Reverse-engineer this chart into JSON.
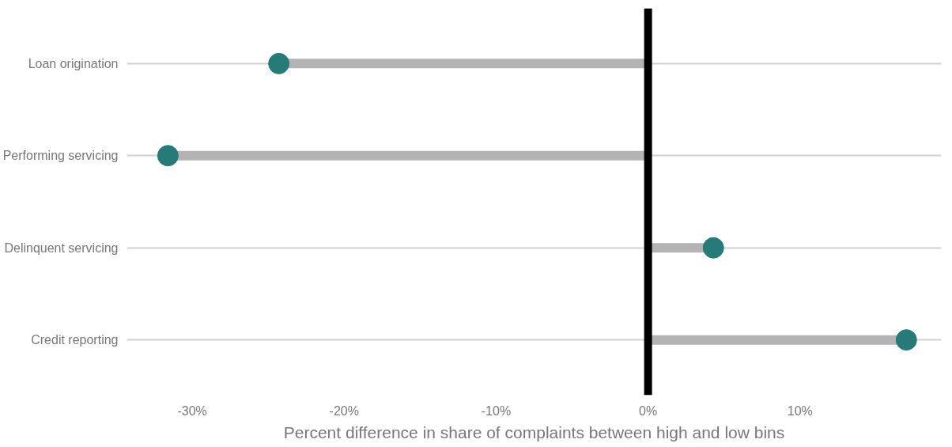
{
  "chart_data": {
    "type": "lollipop",
    "orientation": "horizontal",
    "xlabel": "Percent difference in share of complaints between high and low bins",
    "categories": [
      "Loan origination",
      "Performing servicing",
      "Delinquent servicing",
      "Credit reporting"
    ],
    "series": [
      {
        "color": "#267a78",
        "values": [
          -24.3,
          -31.6,
          4.3,
          17.0
        ]
      }
    ],
    "xlim": [
      -34.3,
      19.3
    ],
    "xticks": [
      {
        "value": -30,
        "label": "-30%"
      },
      {
        "value": -20,
        "label": "-20%"
      },
      {
        "value": -10,
        "label": "-10%"
      },
      {
        "value": 0,
        "label": "0%"
      },
      {
        "value": 10,
        "label": "10%"
      }
    ],
    "ref_lines": [
      {
        "axis": "x",
        "value": 0,
        "color": "#000000"
      }
    ],
    "grid": "y",
    "marker": "circle"
  }
}
